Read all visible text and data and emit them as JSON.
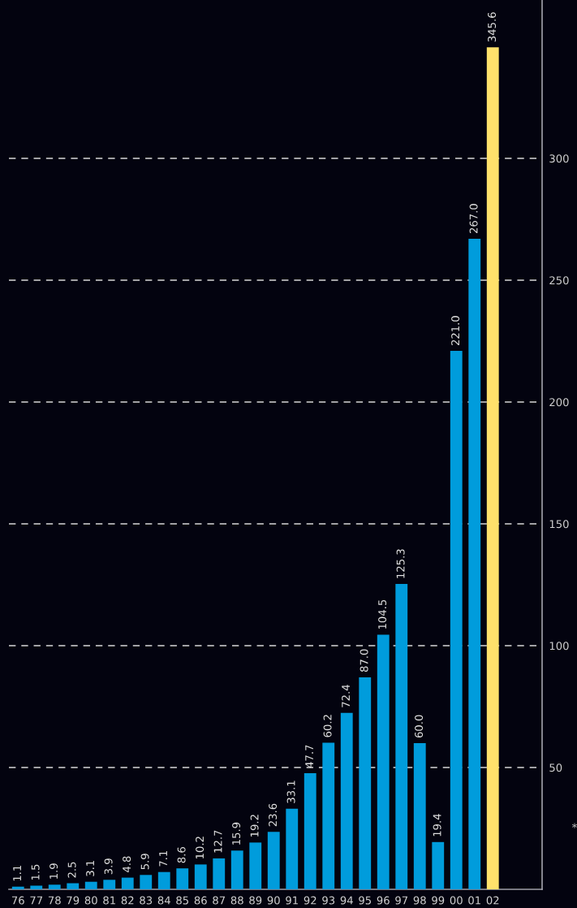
{
  "chart_data": {
    "type": "bar",
    "categories": [
      "76",
      "77",
      "78",
      "79",
      "80",
      "81",
      "82",
      "83",
      "84",
      "85",
      "86",
      "87",
      "88",
      "89",
      "90",
      "91",
      "92",
      "93",
      "94",
      "95",
      "96",
      "97",
      "98",
      "99",
      "00",
      "01",
      "02"
    ],
    "values": [
      1.1,
      1.5,
      1.9,
      2.5,
      3.1,
      3.9,
      4.8,
      5.9,
      7.1,
      8.6,
      10.2,
      12.7,
      15.9,
      19.2,
      23.6,
      33.1,
      47.7,
      60.2,
      72.4,
      87.0,
      104.5,
      125.3,
      60.0,
      19.4,
      221.0,
      267.0,
      345.6
    ],
    "value_labels": [
      "1.1",
      "1.5",
      "1.9",
      "2.5",
      "3.1",
      "3.9",
      "4.8",
      "5.9",
      "7.1",
      "8.6",
      "10.2",
      "12.7",
      "15.9",
      "19.2",
      "23.6",
      "33.1",
      "47.7",
      "60.2",
      "72.4",
      "87.0",
      "104.5",
      "125.3",
      "60.0",
      "19.4",
      "221.0",
      "267.0",
      "345.6"
    ],
    "colors": [
      "#009cdc",
      "#009cdc",
      "#009cdc",
      "#009cdc",
      "#009cdc",
      "#009cdc",
      "#009cdc",
      "#009cdc",
      "#009cdc",
      "#009cdc",
      "#009cdc",
      "#009cdc",
      "#009cdc",
      "#009cdc",
      "#009cdc",
      "#009cdc",
      "#009cdc",
      "#009cdc",
      "#009cdc",
      "#009cdc",
      "#009cdc",
      "#009cdc",
      "#009cdc",
      "#009cdc",
      "#009cdc",
      "#009cdc",
      "#ffe16b"
    ],
    "ylim": [
      0,
      365
    ],
    "yticks": [
      50,
      100,
      150,
      200,
      250,
      300
    ],
    "grid": "y",
    "legend": false,
    "annotations": [
      "*"
    ]
  }
}
